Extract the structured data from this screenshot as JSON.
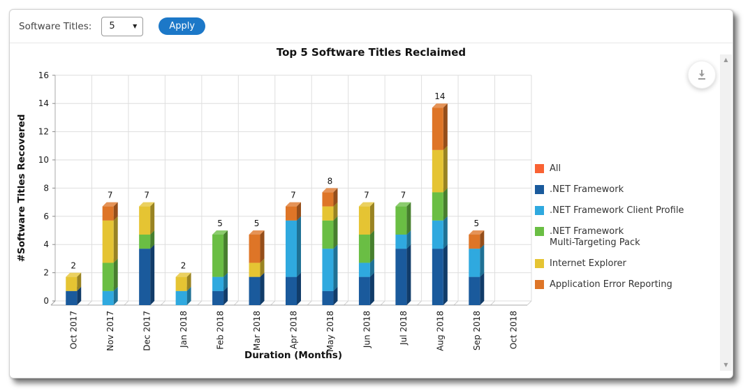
{
  "toolbar": {
    "software_titles_label": "Software Titles:",
    "selected_value": "5",
    "apply_label": "Apply"
  },
  "icons": {
    "dropdown_arrow": "▼",
    "scroll_up": "▲",
    "scroll_down": "▼",
    "download": "download-icon"
  },
  "chart_data": {
    "type": "bar",
    "stacked": true,
    "pseudo_3d": true,
    "title": "Top 5 Software Titles Reclaimed",
    "xlabel": "Duration (Months)",
    "ylabel": "#Software Titles Recovered",
    "ylim": [
      0,
      16
    ],
    "y_ticks": [
      0,
      2,
      4,
      6,
      8,
      10,
      12,
      14,
      16
    ],
    "grid": true,
    "legend_position": "right",
    "categories": [
      "Oct 2017",
      "Nov 2017",
      "Dec 2017",
      "Jan 2018",
      "Feb 2018",
      "Mar 2018",
      "Apr 2018",
      "May 2018",
      "Jun 2018",
      "Jul 2018",
      "Aug 2018",
      "Sep 2018",
      "Oct 2018"
    ],
    "series": [
      {
        "name": ".NET Framework",
        "color": "#1A5A9C",
        "values": [
          1,
          0,
          4,
          0,
          1,
          2,
          2,
          1,
          2,
          4,
          4,
          2,
          0
        ]
      },
      {
        "name": ".NET Framework Client Profile",
        "color": "#2FA9DF",
        "values": [
          0,
          1,
          0,
          1,
          1,
          0,
          4,
          3,
          1,
          1,
          2,
          2,
          0
        ]
      },
      {
        "name": ".NET Framework Multi-Targeting Pack",
        "color": "#6ABE44",
        "values": [
          0,
          2,
          1,
          0,
          3,
          0,
          0,
          2,
          2,
          2,
          2,
          0,
          0
        ]
      },
      {
        "name": "Internet Explorer",
        "color": "#E5C433",
        "values": [
          1,
          3,
          2,
          1,
          0,
          1,
          0,
          1,
          2,
          0,
          3,
          0,
          0
        ]
      },
      {
        "name": "Application Error Reporting",
        "color": "#DE7527",
        "values": [
          0,
          1,
          0,
          0,
          0,
          2,
          1,
          1,
          0,
          0,
          3,
          1,
          0
        ]
      }
    ],
    "totals": [
      2,
      7,
      7,
      2,
      5,
      5,
      7,
      8,
      7,
      7,
      14,
      5,
      0
    ],
    "legend": [
      {
        "label_lines": [
          "All"
        ],
        "color": "#F96233"
      },
      {
        "label_lines": [
          ".NET Framework"
        ],
        "color": "#1A5A9C"
      },
      {
        "label_lines": [
          ".NET Framework Client Profile"
        ],
        "color": "#2FA9DF"
      },
      {
        "label_lines": [
          ".NET Framework",
          "Multi-Targeting Pack"
        ],
        "color": "#6ABE44"
      },
      {
        "label_lines": [
          "Internet Explorer"
        ],
        "color": "#E5C433"
      },
      {
        "label_lines": [
          "Application Error Reporting"
        ],
        "color": "#DE7527"
      }
    ]
  }
}
